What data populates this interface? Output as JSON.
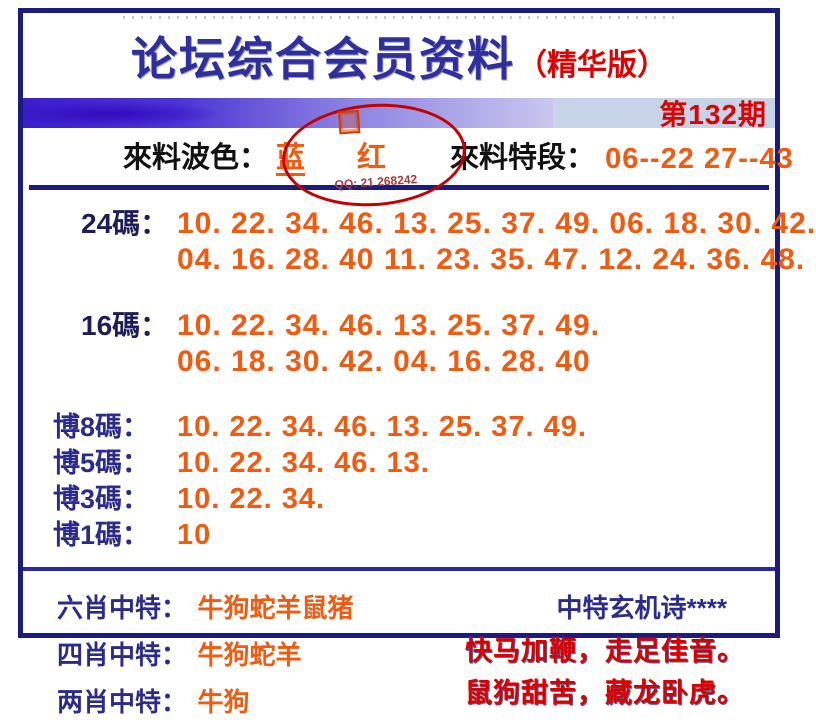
{
  "header": {
    "title": "论坛综合会员资料",
    "edition": "（精华版）",
    "issue": "第132期"
  },
  "info_row": {
    "wave_label": "來料波色：",
    "wave_blue": "蓝",
    "wave_red": "红",
    "segment_label": "來料特段：",
    "segment_value": "06--22 27--43"
  },
  "stamp": {
    "qq_text": "QQ: 21 268242"
  },
  "code_rows": [
    {
      "label": "24碼：",
      "line1": "10. 22. 34. 46. 13. 25. 37. 49. 06. 18. 30. 42.",
      "line2": "04. 16. 28. 40 11. 23. 35. 47. 12. 24. 36. 48."
    },
    {
      "label": "16碼：",
      "line1": "10. 22. 34. 46. 13. 25. 37. 49.",
      "line2": "06. 18. 30. 42. 04. 16. 28. 40"
    }
  ],
  "bo_rows": [
    {
      "label": "博8碼：",
      "value": "10. 22. 34. 46. 13. 25. 37. 49."
    },
    {
      "label": "博5碼：",
      "value": "10. 22. 34. 46. 13."
    },
    {
      "label": "博3碼：",
      "value": "10. 22. 34."
    },
    {
      "label": "博1碼：",
      "value": "10"
    }
  ],
  "zodiac_rows": [
    {
      "label": "六肖中特：",
      "value": "牛狗蛇羊鼠猪"
    },
    {
      "label": "四肖中特：",
      "value": "牛狗蛇羊"
    },
    {
      "label": "两肖中特：",
      "value": "牛狗"
    }
  ],
  "poem": {
    "title": "中特玄机诗****",
    "line1": "快马加鞭，走足佳音。",
    "line2": "鼠狗甜苦，藏龙卧虎。"
  },
  "colors": {
    "border_navy": "#1b1b80",
    "title_navy": "#2f2f9d",
    "label_navy": "#2b2b8e",
    "accent_red": "#e00000",
    "number_orange": "#f25a10",
    "poem_red": "#d80000",
    "issue_bg": "#c7d3e6",
    "bar_gradient_start": "#3a1ecb",
    "bar_gradient_end": "#c9c7ef",
    "stamp_red": "#c40000"
  }
}
